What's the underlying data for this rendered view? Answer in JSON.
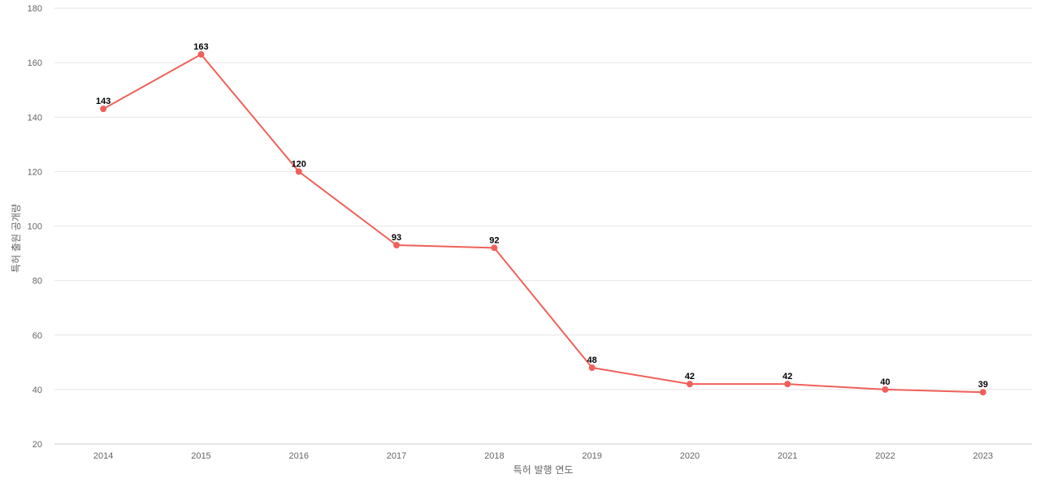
{
  "chart_data": {
    "type": "line",
    "title": "",
    "xlabel": "특허 발행 연도",
    "ylabel": "특허 출원 공개량",
    "x": [
      "2014",
      "2015",
      "2016",
      "2017",
      "2018",
      "2019",
      "2020",
      "2021",
      "2022",
      "2023"
    ],
    "series": [
      {
        "values": [
          143,
          163,
          120,
          93,
          92,
          48,
          42,
          42,
          40,
          39
        ],
        "color": "#f0605a"
      }
    ],
    "ylim": [
      20,
      180
    ],
    "yticks": [
      20,
      40,
      60,
      80,
      100,
      120,
      140,
      160,
      180
    ],
    "grid": true,
    "data_labels": true,
    "legend": "none"
  }
}
